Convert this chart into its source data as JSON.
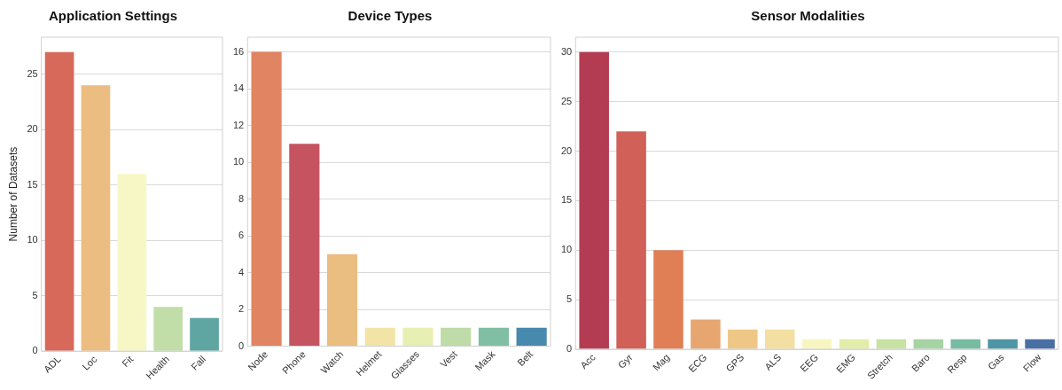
{
  "chart_data": [
    {
      "type": "bar",
      "title": "Application Settings",
      "ylabel": "Number of Datasets",
      "categories": [
        "ADL",
        "Loc",
        "Fit",
        "Health",
        "Fall"
      ],
      "values": [
        27,
        24,
        16,
        4,
        3
      ],
      "colors": [
        "#d7695b",
        "#ebbd80",
        "#f7f7c5",
        "#c1dda8",
        "#5fa6a2"
      ],
      "ylim": [
        0,
        28.35
      ],
      "yticks": [
        0,
        5,
        10,
        15,
        20,
        25
      ],
      "grid": "y",
      "legend": false
    },
    {
      "type": "bar",
      "title": "Device Types",
      "categories": [
        "Node",
        "Phone",
        "Watch",
        "Helmet",
        "Glasses",
        "Vest",
        "Mask",
        "Belt"
      ],
      "values": [
        16,
        11,
        5,
        1,
        1,
        1,
        1,
        1
      ],
      "colors": [
        "#e08461",
        "#c55460",
        "#eabd80",
        "#f2e4a7",
        "#e8efb2",
        "#bfdba7",
        "#80bfa3",
        "#4889ae"
      ],
      "ylim": [
        0,
        16.8
      ],
      "yticks": [
        0,
        2,
        4,
        6,
        8,
        10,
        12,
        14,
        16
      ],
      "grid": "y",
      "legend": false
    },
    {
      "type": "bar",
      "title": "Sensor Modalities",
      "categories": [
        "Acc",
        "Gyr",
        "Mag",
        "ECG",
        "GPS",
        "ALS",
        "EEG",
        "EMG",
        "Stretch",
        "Baro",
        "Resp",
        "Gas",
        "Flow"
      ],
      "values": [
        30,
        22,
        10,
        3,
        2,
        2,
        1,
        1,
        1,
        1,
        1,
        1,
        1
      ],
      "colors": [
        "#b33c52",
        "#d06058",
        "#e07e56",
        "#e7a570",
        "#eec787",
        "#f3dfa2",
        "#f8f6c0",
        "#e2eda9",
        "#c7e2a3",
        "#a6d4a4",
        "#78bba3",
        "#4e95a5",
        "#4a6fa5"
      ],
      "ylim": [
        0,
        31.5
      ],
      "yticks": [
        0,
        5,
        10,
        15,
        20,
        25,
        30
      ],
      "grid": "y",
      "legend": false
    }
  ]
}
